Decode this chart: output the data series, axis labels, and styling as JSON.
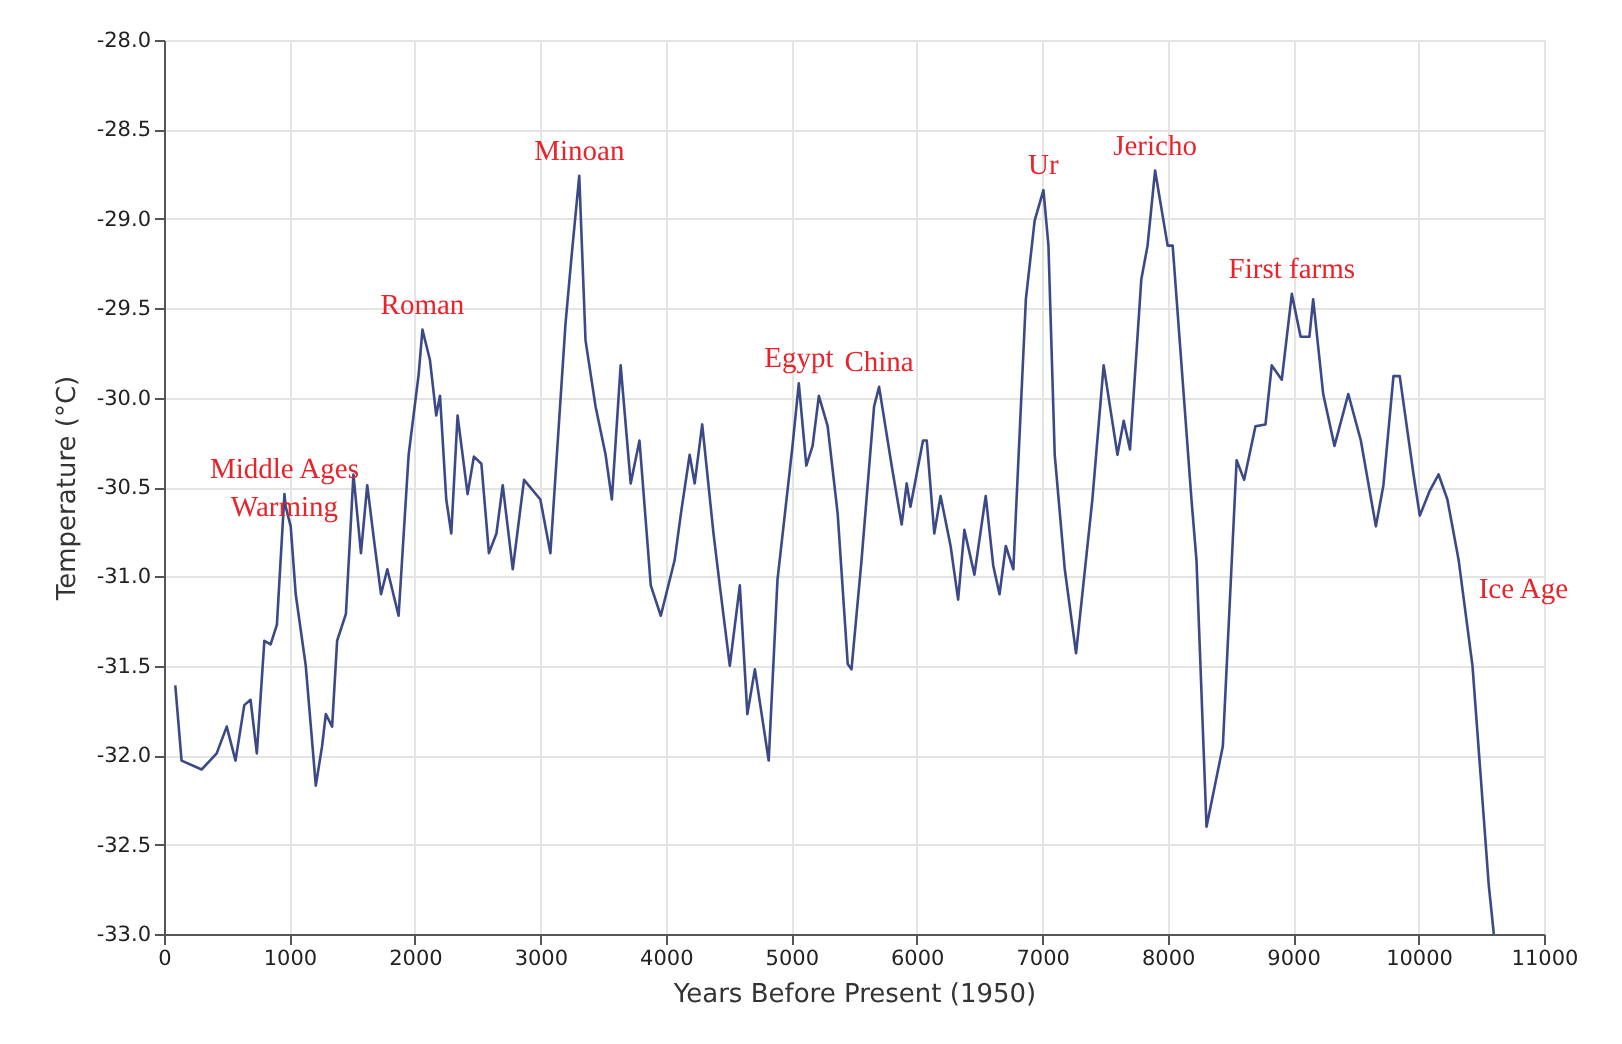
{
  "chart_data": {
    "type": "line",
    "xlabel": "Years Before Present (1950)",
    "ylabel": "Temperature (°C)",
    "x": [
      90,
      140,
      300,
      420,
      500,
      570,
      640,
      690,
      740,
      800,
      850,
      900,
      960,
      970,
      1010,
      1050,
      1130,
      1210,
      1260,
      1290,
      1340,
      1380,
      1450,
      1510,
      1570,
      1620,
      1680,
      1730,
      1780,
      1870,
      1950,
      2030,
      2060,
      2120,
      2170,
      2200,
      2250,
      2290,
      2340,
      2420,
      2470,
      2530,
      2590,
      2650,
      2700,
      2780,
      2870,
      3000,
      3080,
      3200,
      3250,
      3310,
      3360,
      3440,
      3520,
      3570,
      3640,
      3720,
      3790,
      3880,
      3960,
      4070,
      4120,
      4190,
      4230,
      4290,
      4380,
      4430,
      4510,
      4590,
      4650,
      4710,
      4820,
      4890,
      5010,
      5060,
      5120,
      5170,
      5220,
      5290,
      5370,
      5450,
      5480,
      5560,
      5660,
      5700,
      5800,
      5880,
      5920,
      5950,
      6050,
      6080,
      6140,
      6190,
      6270,
      6330,
      6380,
      6460,
      6550,
      6610,
      6660,
      6710,
      6770,
      6870,
      6940,
      7010,
      7050,
      7100,
      7180,
      7270,
      7400,
      7490,
      7600,
      7650,
      7700,
      7790,
      7840,
      7900,
      8000,
      8040,
      8190,
      8230,
      8310,
      8440,
      8550,
      8610,
      8700,
      8780,
      8830,
      8910,
      8990,
      9060,
      9130,
      9160,
      9240,
      9330,
      9440,
      9540,
      9660,
      9720,
      9800,
      9850,
      9960,
      10010,
      10090,
      10160,
      10230,
      10320,
      10430,
      10560,
      10600
    ],
    "series": [
      {
        "color": "#3b4a86",
        "values": [
          -31.61,
          -32.03,
          -32.08,
          -31.99,
          -31.84,
          -32.03,
          -31.72,
          -31.69,
          -31.99,
          -31.36,
          -31.38,
          -31.27,
          -30.54,
          -30.61,
          -30.72,
          -31.1,
          -31.5,
          -32.17,
          -31.95,
          -31.77,
          -31.84,
          -31.36,
          -31.21,
          -30.43,
          -30.87,
          -30.49,
          -30.83,
          -31.1,
          -30.96,
          -31.22,
          -30.32,
          -29.87,
          -29.62,
          -29.79,
          -30.1,
          -29.99,
          -30.57,
          -30.76,
          -30.1,
          -30.54,
          -30.33,
          -30.37,
          -30.87,
          -30.76,
          -30.49,
          -30.96,
          -30.46,
          -30.57,
          -30.87,
          -29.59,
          -29.2,
          -28.76,
          -29.68,
          -30.05,
          -30.32,
          -30.57,
          -29.82,
          -30.48,
          -30.24,
          -31.05,
          -31.22,
          -30.91,
          -30.65,
          -30.32,
          -30.48,
          -30.15,
          -30.76,
          -31.05,
          -31.5,
          -31.05,
          -31.77,
          -31.52,
          -32.03,
          -31.02,
          -30.27,
          -29.92,
          -30.38,
          -30.27,
          -29.99,
          -30.16,
          -30.65,
          -31.49,
          -31.52,
          -30.91,
          -30.05,
          -29.94,
          -30.38,
          -30.71,
          -30.48,
          -30.61,
          -30.24,
          -30.24,
          -30.76,
          -30.55,
          -30.83,
          -31.13,
          -30.74,
          -30.99,
          -30.55,
          -30.94,
          -31.1,
          -30.83,
          -30.96,
          -29.45,
          -29.01,
          -28.84,
          -29.15,
          -30.32,
          -30.96,
          -31.43,
          -30.57,
          -29.82,
          -30.32,
          -30.13,
          -30.29,
          -29.34,
          -29.15,
          -28.73,
          -29.15,
          -29.15,
          -30.57,
          -30.91,
          -32.4,
          -31.95,
          -30.35,
          -30.46,
          -30.16,
          -30.15,
          -29.82,
          -29.9,
          -29.42,
          -29.66,
          -29.66,
          -29.45,
          -29.98,
          -30.27,
          -29.98,
          -30.24,
          -30.72,
          -30.49,
          -29.88,
          -29.88,
          -30.43,
          -30.66,
          -30.52,
          -30.43,
          -30.57,
          -30.91,
          -31.5,
          -32.73,
          -33.0
        ]
      }
    ],
    "xlim": [
      0,
      11000
    ],
    "xticks": [
      0,
      1000,
      2000,
      3000,
      4000,
      5000,
      6000,
      7000,
      8000,
      9000,
      10000,
      11000
    ],
    "ylim": [
      -33,
      -28
    ],
    "yticks": [
      {
        "value": -33,
        "label": "-33.0"
      },
      {
        "value": -32.5,
        "label": "-32.5"
      },
      {
        "value": -32,
        "label": "-32.0"
      },
      {
        "value": -31.5,
        "label": "-31.5"
      },
      {
        "value": -31,
        "label": "-31.0"
      },
      {
        "value": -30.5,
        "label": "-30.5"
      },
      {
        "value": -30,
        "label": "-30.0"
      },
      {
        "value": -29.5,
        "label": "-29.5"
      },
      {
        "value": -29,
        "label": "-29.0"
      },
      {
        "value": -28.5,
        "label": "-28.5"
      },
      {
        "value": -28,
        "label": "-28.0"
      }
    ],
    "grid": true,
    "annotations": [
      {
        "text": "Middle Ages Warming",
        "x": 960,
        "y": -30.54
      },
      {
        "text": "Roman",
        "x": 2060,
        "y": -29.62
      },
      {
        "text": "Minoan",
        "x": 3310,
        "y": -28.76
      },
      {
        "text": "Egypt",
        "x": 5060,
        "y": -29.92
      },
      {
        "text": "China",
        "x": 5700,
        "y": -29.94
      },
      {
        "text": "Ur",
        "x": 7010,
        "y": -28.84
      },
      {
        "text": "Jericho",
        "x": 7900,
        "y": -28.73
      },
      {
        "text": "First farms",
        "x": 8990,
        "y": -29.42
      },
      {
        "text": "Ice Age",
        "x": 10320,
        "y": -30.91
      }
    ]
  }
}
